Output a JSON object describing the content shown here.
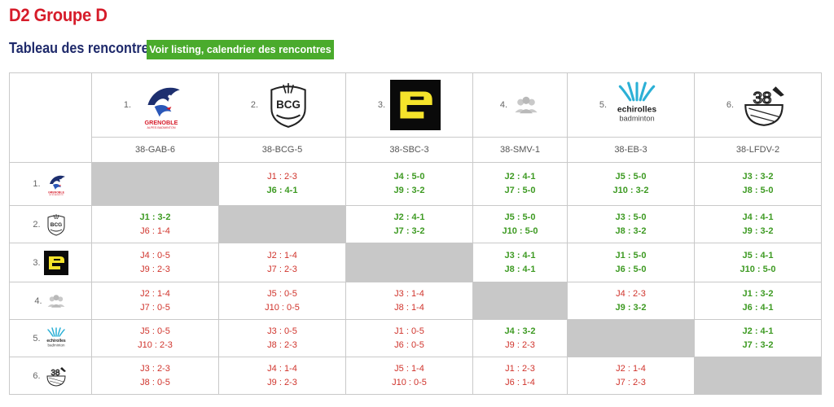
{
  "page": {
    "title": "D2 Groupe D",
    "subtitle": "Tableau des rencontres",
    "listing_button": "Voir listing, calendrier des rencontres"
  },
  "colors": {
    "title": "#d61c2a",
    "subtitle": "#1f2a6b",
    "button": "#4aab2c",
    "win": "#3d9a22",
    "loss": "#d0342c",
    "diagonal": "#c8c8c8"
  },
  "teams": [
    {
      "rank": "1.",
      "code": "38-GAB-6",
      "logo": "grenoble-logo",
      "logo_text": "GRENOBLE",
      "logo_sub": "ALPES BADMINTON"
    },
    {
      "rank": "2.",
      "code": "38-BCG-5",
      "logo": "bcg-logo",
      "logo_text": "BCG"
    },
    {
      "rank": "3.",
      "code": "38-SBC-3",
      "logo": "sbc-logo"
    },
    {
      "rank": "4.",
      "code": "38-SMV-1",
      "logo": "group-placeholder-icon"
    },
    {
      "rank": "5.",
      "code": "38-EB-3",
      "logo": "echirolles-logo",
      "logo_text": "echirolles",
      "logo_sub": "badminton"
    },
    {
      "rank": "6.",
      "code": "38-LFDV-2",
      "logo": "lfdv-logo",
      "logo_text": "38"
    }
  ],
  "matches": [
    [
      null,
      [
        {
          "text": "J1 : 2-3",
          "win": false
        },
        {
          "text": "J6 : 4-1",
          "win": true
        }
      ],
      [
        {
          "text": "J4 : 5-0",
          "win": true
        },
        {
          "text": "J9 : 3-2",
          "win": true
        }
      ],
      [
        {
          "text": "J2 : 4-1",
          "win": true
        },
        {
          "text": "J7 : 5-0",
          "win": true
        }
      ],
      [
        {
          "text": "J5 : 5-0",
          "win": true
        },
        {
          "text": "J10 : 3-2",
          "win": true
        }
      ],
      [
        {
          "text": "J3 : 3-2",
          "win": true
        },
        {
          "text": "J8 : 5-0",
          "win": true
        }
      ]
    ],
    [
      [
        {
          "text": "J1 : 3-2",
          "win": true
        },
        {
          "text": "J6 : 1-4",
          "win": false
        }
      ],
      null,
      [
        {
          "text": "J2 : 4-1",
          "win": true
        },
        {
          "text": "J7 : 3-2",
          "win": true
        }
      ],
      [
        {
          "text": "J5 : 5-0",
          "win": true
        },
        {
          "text": "J10 : 5-0",
          "win": true
        }
      ],
      [
        {
          "text": "J3 : 5-0",
          "win": true
        },
        {
          "text": "J8 : 3-2",
          "win": true
        }
      ],
      [
        {
          "text": "J4 : 4-1",
          "win": true
        },
        {
          "text": "J9 : 3-2",
          "win": true
        }
      ]
    ],
    [
      [
        {
          "text": "J4 : 0-5",
          "win": false
        },
        {
          "text": "J9 : 2-3",
          "win": false
        }
      ],
      [
        {
          "text": "J2 : 1-4",
          "win": false
        },
        {
          "text": "J7 : 2-3",
          "win": false
        }
      ],
      null,
      [
        {
          "text": "J3 : 4-1",
          "win": true
        },
        {
          "text": "J8 : 4-1",
          "win": true
        }
      ],
      [
        {
          "text": "J1 : 5-0",
          "win": true
        },
        {
          "text": "J6 : 5-0",
          "win": true
        }
      ],
      [
        {
          "text": "J5 : 4-1",
          "win": true
        },
        {
          "text": "J10 : 5-0",
          "win": true
        }
      ]
    ],
    [
      [
        {
          "text": "J2 : 1-4",
          "win": false
        },
        {
          "text": "J7 : 0-5",
          "win": false
        }
      ],
      [
        {
          "text": "J5 : 0-5",
          "win": false
        },
        {
          "text": "J10 : 0-5",
          "win": false
        }
      ],
      [
        {
          "text": "J3 : 1-4",
          "win": false
        },
        {
          "text": "J8 : 1-4",
          "win": false
        }
      ],
      null,
      [
        {
          "text": "J4 : 2-3",
          "win": false
        },
        {
          "text": "J9 : 3-2",
          "win": true
        }
      ],
      [
        {
          "text": "J1 : 3-2",
          "win": true
        },
        {
          "text": "J6 : 4-1",
          "win": true
        }
      ]
    ],
    [
      [
        {
          "text": "J5 : 0-5",
          "win": false
        },
        {
          "text": "J10 : 2-3",
          "win": false
        }
      ],
      [
        {
          "text": "J3 : 0-5",
          "win": false
        },
        {
          "text": "J8 : 2-3",
          "win": false
        }
      ],
      [
        {
          "text": "J1 : 0-5",
          "win": false
        },
        {
          "text": "J6 : 0-5",
          "win": false
        }
      ],
      [
        {
          "text": "J4 : 3-2",
          "win": true
        },
        {
          "text": "J9 : 2-3",
          "win": false
        }
      ],
      null,
      [
        {
          "text": "J2 : 4-1",
          "win": true
        },
        {
          "text": "J7 : 3-2",
          "win": true
        }
      ]
    ],
    [
      [
        {
          "text": "J3 : 2-3",
          "win": false
        },
        {
          "text": "J8 : 0-5",
          "win": false
        }
      ],
      [
        {
          "text": "J4 : 1-4",
          "win": false
        },
        {
          "text": "J9 : 2-3",
          "win": false
        }
      ],
      [
        {
          "text": "J5 : 1-4",
          "win": false
        },
        {
          "text": "J10 : 0-5",
          "win": false
        }
      ],
      [
        {
          "text": "J1 : 2-3",
          "win": false
        },
        {
          "text": "J6 : 1-4",
          "win": false
        }
      ],
      [
        {
          "text": "J2 : 1-4",
          "win": false
        },
        {
          "text": "J7 : 2-3",
          "win": false
        }
      ],
      null
    ]
  ]
}
